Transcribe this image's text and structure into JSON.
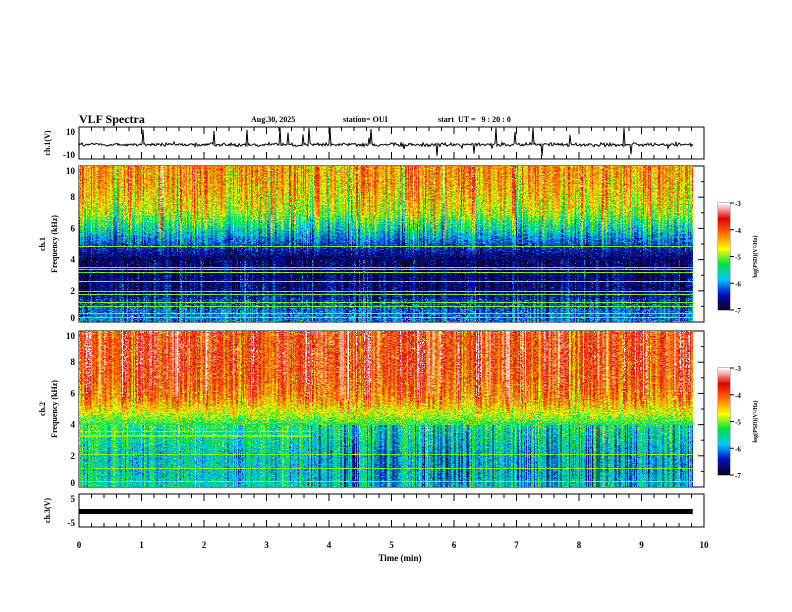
{
  "chart_data": {
    "type": "heatmap",
    "header": {
      "title": "VLF Spectra",
      "date": "Aug.30, 2025",
      "station": "station= OUI",
      "start": "start  UT =   9 : 20 : 0"
    },
    "time_axis": {
      "label": "Time  (min)",
      "range": [
        0,
        10
      ],
      "ticks": [
        "0",
        "1",
        "2",
        "3",
        "4",
        "5",
        "6",
        "7",
        "8",
        "9",
        "10"
      ],
      "data_end": 9.82
    },
    "panels": [
      {
        "id": "ch1_waveform",
        "type": "line",
        "ylabel": "ch.1(V)",
        "ylim": [
          -10,
          10
        ],
        "yticks": [
          "10",
          "-10"
        ],
        "baseline": 0,
        "spike_amplitude": 9
      },
      {
        "id": "ch1_spectrogram",
        "type": "heatmap",
        "ylabel": "ch.1\nFrequency  (kHz)",
        "ylabel_lines": [
          "ch.1",
          "Frequency  (kHz)"
        ],
        "ylim": [
          0,
          10
        ],
        "yticks": [
          "0",
          "2",
          "4",
          "6",
          "8",
          "10"
        ],
        "band_profile_kHz": [
          0,
          0.5,
          1,
          1.5,
          2,
          3,
          4,
          5,
          5.5,
          6,
          6.5,
          7,
          8,
          9,
          10
        ],
        "band_profile_logpsd": [
          -6.2,
          -6.2,
          -6.3,
          -6.5,
          -6.7,
          -6.8,
          -6.8,
          -6.3,
          -6.0,
          -5.6,
          -5.3,
          -4.9,
          -4.6,
          -4.4,
          -4.3
        ],
        "line_frequencies_kHz": [
          0.3,
          0.6,
          1.0,
          1.3,
          1.8,
          2.0,
          2.6,
          3.2,
          3.4,
          3.5,
          4.9
        ]
      },
      {
        "id": "ch2_spectrogram",
        "type": "heatmap",
        "ylabel": "ch.2\nFrequency  (kHz)",
        "ylabel_lines": [
          "ch.2",
          "Frequency  (kHz)"
        ],
        "ylim": [
          0,
          10
        ],
        "yticks": [
          "0",
          "2",
          "4",
          "6",
          "8",
          "10"
        ],
        "band_profile_kHz": [
          0,
          1,
          2,
          3,
          4,
          4.5,
          5,
          5.5,
          6,
          7,
          8,
          10
        ],
        "band_profile_logpsd": [
          -5.6,
          -5.7,
          -5.7,
          -5.5,
          -5.3,
          -5.0,
          -4.7,
          -4.4,
          -4.2,
          -4.0,
          -3.9,
          -3.9
        ],
        "line_frequencies_kHz": [
          0.4,
          1.2,
          2.1,
          3.3,
          3.6
        ],
        "regime_change_min": 3.7
      },
      {
        "id": "ch3_waveform",
        "type": "line",
        "ylabel": "ch.3(V)",
        "ylim": [
          -5,
          5
        ],
        "yticks": [
          "5",
          "-5"
        ],
        "value": 0
      }
    ],
    "colorbar": {
      "label": "log(PSD)(V²/Hz)",
      "range": [
        -7,
        -3
      ],
      "ticks": [
        "-3",
        "-4",
        "-5",
        "-6",
        "-7"
      ],
      "colors": [
        "#0a0020",
        "#0010c0",
        "#00c8ff",
        "#00e040",
        "#ffff00",
        "#ff7000",
        "#e00000",
        "#ffffff"
      ]
    }
  }
}
